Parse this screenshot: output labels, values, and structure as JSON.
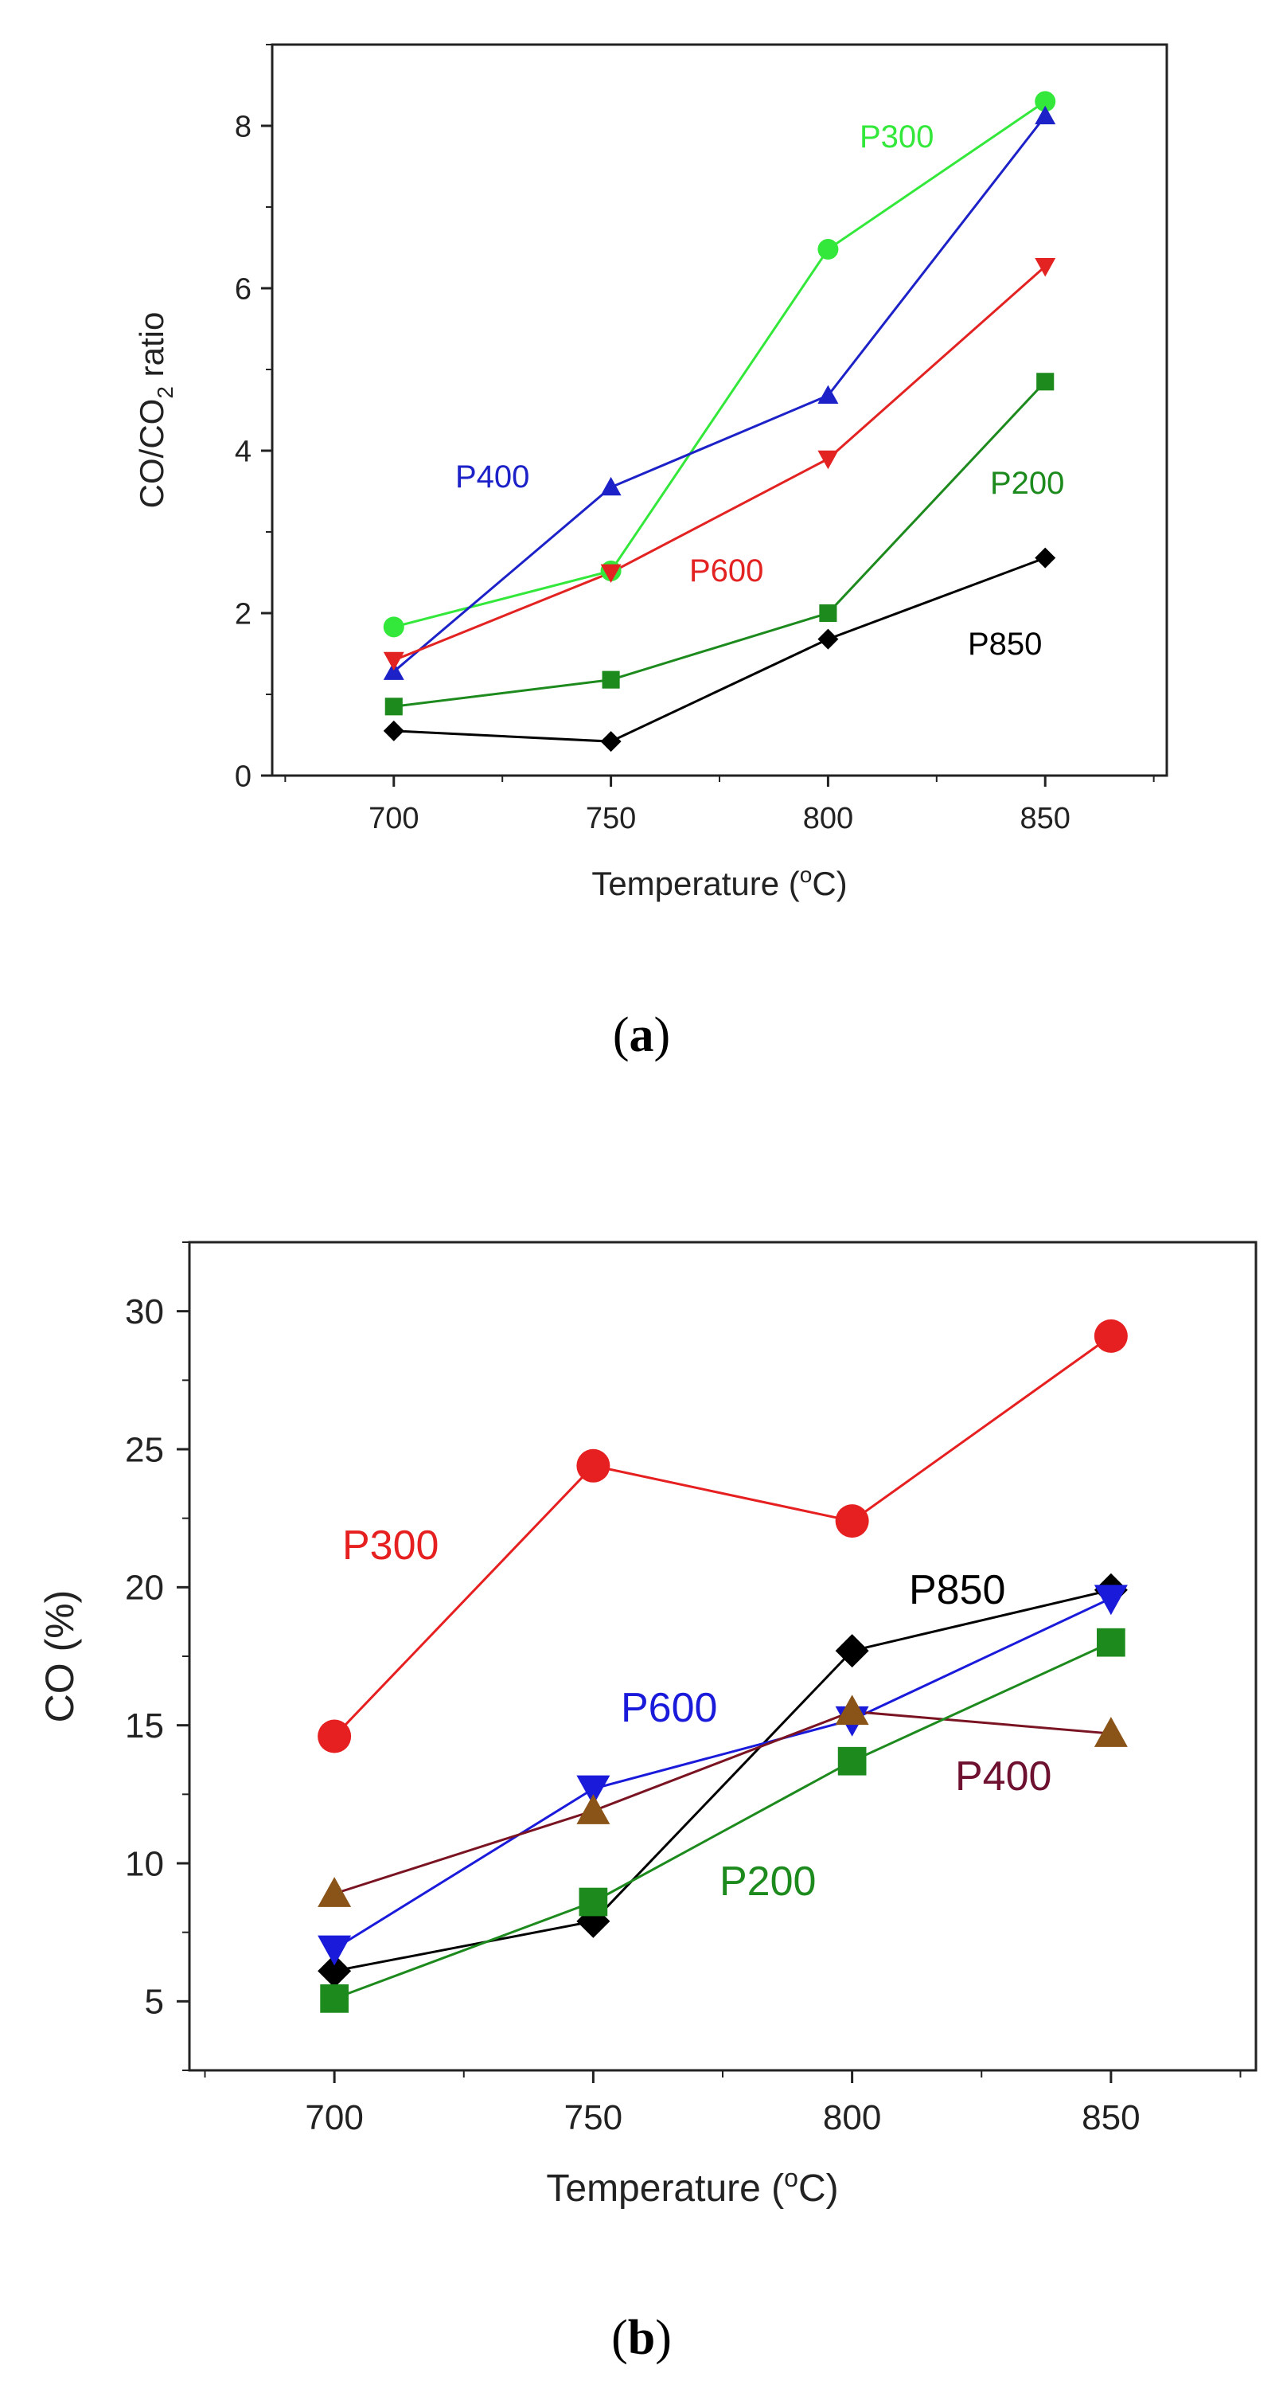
{
  "chart_data": [
    {
      "type": "line",
      "caption": "a",
      "xlabel": "Temperature (",
      "xlabel_super": "o",
      "xlabel_unit": "C)",
      "ylabel_prefix": "CO/CO",
      "ylabel_sub": "2",
      "ylabel_suffix": " ratio",
      "x": [
        700,
        750,
        800,
        850
      ],
      "xlim": [
        672,
        878
      ],
      "ylim": [
        0,
        9
      ],
      "xticks": [
        700,
        750,
        800,
        850
      ],
      "yticks": [
        0,
        2,
        4,
        6,
        8
      ],
      "series": [
        {
          "name": "P300",
          "color": "#33e83a",
          "marker": "circle",
          "values": [
            1.83,
            2.52,
            6.48,
            8.3
          ]
        },
        {
          "name": "P400",
          "color": "#1c22c7",
          "marker": "triangle",
          "values": [
            1.28,
            3.55,
            4.68,
            8.12
          ]
        },
        {
          "name": "P600",
          "color": "#e32222",
          "marker": "triangle-down",
          "values": [
            1.42,
            2.5,
            3.9,
            6.27
          ]
        },
        {
          "name": "P200",
          "color": "#1d8a1d",
          "marker": "square",
          "values": [
            0.85,
            1.18,
            2.0,
            4.85
          ]
        },
        {
          "name": "P850",
          "color": "#000000",
          "marker": "diamond",
          "values": [
            0.55,
            0.42,
            1.68,
            2.68
          ]
        }
      ]
    },
    {
      "type": "line",
      "caption": "b",
      "xlabel": "Temperature (",
      "xlabel_super": "o",
      "xlabel_unit": "C)",
      "ylabel": "CO (%)",
      "x": [
        700,
        750,
        800,
        850
      ],
      "xlim": [
        672,
        878
      ],
      "ylim": [
        2.5,
        32.5
      ],
      "xticks": [
        700,
        750,
        800,
        850
      ],
      "yticks": [
        5,
        10,
        15,
        20,
        25,
        30
      ],
      "series": [
        {
          "name": "P300",
          "color": "#e62020",
          "marker": "circle",
          "values": [
            14.6,
            24.4,
            22.4,
            29.1
          ]
        },
        {
          "name": "P850",
          "color": "#000000",
          "marker": "diamond",
          "values": [
            6.1,
            7.9,
            17.7,
            19.9
          ]
        },
        {
          "name": "P600",
          "color": "#1a1adb",
          "marker": "triangle-down",
          "values": [
            6.9,
            12.7,
            15.2,
            19.6
          ]
        },
        {
          "name": "P400",
          "color": "#6e1030",
          "line_color": "#7a1422",
          "marker_color": "#8a5418",
          "marker": "triangle",
          "values": [
            8.9,
            11.9,
            15.5,
            14.7
          ]
        },
        {
          "name": "P200",
          "color": "#1d8a1d",
          "marker": "square",
          "values": [
            5.1,
            8.6,
            13.7,
            18.0
          ]
        }
      ]
    }
  ]
}
